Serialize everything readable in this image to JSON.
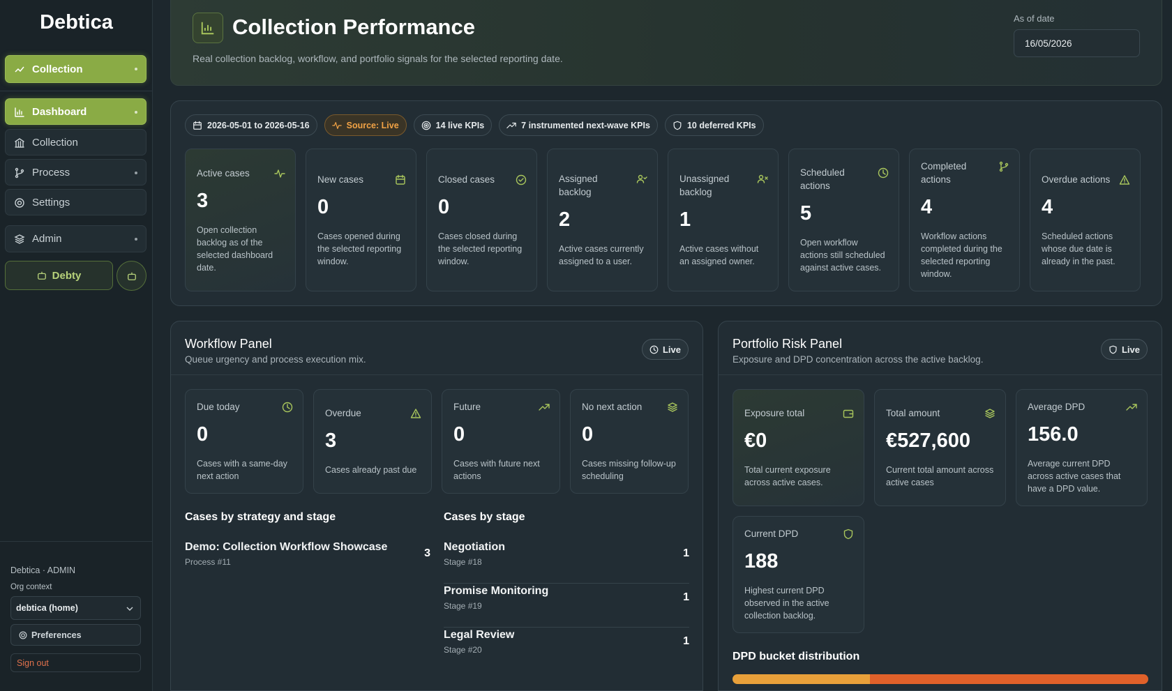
{
  "sidebar": {
    "brand": "Debtica",
    "workspace": "Collection",
    "nav": [
      "Dashboard",
      "Collection",
      "Process",
      "Settings"
    ],
    "admin": "Admin",
    "assistant": "Debty",
    "footer": {
      "account": "Debtica · ADMIN",
      "org_label": "Org context",
      "org_value": "debtica (home)",
      "preferences": "Preferences",
      "sign_out": "Sign out"
    }
  },
  "header": {
    "title": "Collection Performance",
    "subtitle": "Real collection backlog, workflow, and portfolio signals for the selected reporting date.",
    "date_label": "As of date",
    "date_value": "16/05/2026"
  },
  "summary": {
    "chips": [
      "2026-05-01 to 2026-05-16",
      "Source: Live",
      "14 live KPIs",
      "7 instrumented next-wave KPIs",
      "10 deferred KPIs"
    ],
    "kpis": [
      {
        "label": "Active cases",
        "value": 3,
        "description": "Open collection backlog as of the selected dashboard date."
      },
      {
        "label": "New cases",
        "value": 0,
        "description": "Cases opened during the selected reporting window."
      },
      {
        "label": "Closed cases",
        "value": 0,
        "description": "Cases closed during the selected reporting window."
      },
      {
        "label": "Assigned backlog",
        "value": 2,
        "description": "Active cases currently assigned to a user."
      },
      {
        "label": "Unassigned backlog",
        "value": 1,
        "description": "Active cases without an assigned owner."
      },
      {
        "label": "Scheduled actions",
        "value": 5,
        "description": "Open workflow actions still scheduled against active cases."
      },
      {
        "label": "Completed actions",
        "value": 4,
        "description": "Workflow actions completed during the selected reporting window."
      },
      {
        "label": "Overdue actions",
        "value": 4,
        "description": "Scheduled actions whose due date is already in the past."
      }
    ]
  },
  "workflow": {
    "title": "Workflow Panel",
    "subtitle": "Queue urgency and process execution mix.",
    "status": "Live",
    "cards": [
      {
        "label": "Due today",
        "value": 0,
        "description": "Cases with a same-day next action"
      },
      {
        "label": "Overdue",
        "value": 3,
        "description": "Cases already past due"
      },
      {
        "label": "Future",
        "value": 0,
        "description": "Cases with future next actions"
      },
      {
        "label": "No next action",
        "value": 0,
        "description": "Cases missing follow-up scheduling"
      }
    ],
    "strategy": {
      "title": "Cases by strategy and stage",
      "rows": [
        {
          "name": "Demo: Collection Workflow Showcase",
          "detail": "Process #11",
          "count": 3
        }
      ]
    },
    "stages": {
      "title": "Cases by stage",
      "rows": [
        {
          "name": "Negotiation",
          "detail": "Stage #18",
          "count": 1
        },
        {
          "name": "Promise Monitoring",
          "detail": "Stage #19",
          "count": 1
        },
        {
          "name": "Legal Review",
          "detail": "Stage #20",
          "count": 1
        }
      ]
    }
  },
  "portfolio": {
    "title": "Portfolio Risk Panel",
    "subtitle": "Exposure and DPD concentration across the active backlog.",
    "status": "Live",
    "cards": [
      {
        "label": "Exposure total",
        "value": "€0",
        "description": "Total current exposure across active cases."
      },
      {
        "label": "Total amount",
        "value": "€527,600",
        "description": "Current total amount across active cases"
      },
      {
        "label": "Average DPD",
        "value": "156.0",
        "description": "Average current DPD across active cases that have a DPD value."
      },
      {
        "label": "Current DPD",
        "value": 188,
        "description": "Highest current DPD observed in the active collection backlog."
      }
    ],
    "distribution": {
      "title": "DPD bucket distribution",
      "shares": [
        33,
        67
      ]
    }
  }
}
